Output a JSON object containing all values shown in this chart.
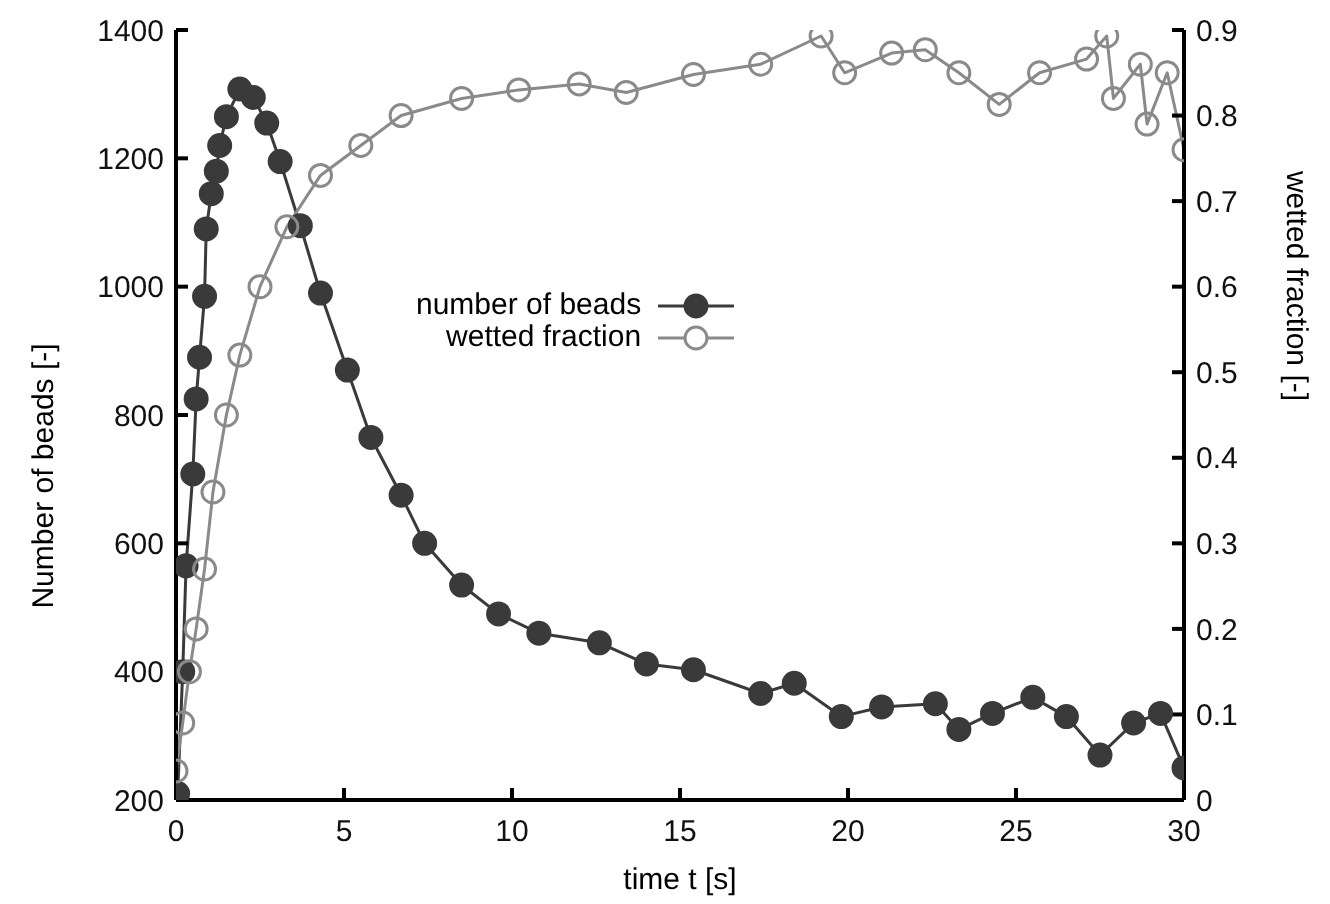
{
  "chart_data": {
    "type": "line",
    "xlabel": "time t [s]",
    "ylabel": "Number of beads [-]",
    "y2label": "wetted fraction [-]",
    "xlim": [
      0,
      30
    ],
    "xticks": [
      0,
      5,
      10,
      15,
      20,
      25,
      30
    ],
    "ylim": [
      200,
      1400
    ],
    "yticks": [
      200,
      400,
      600,
      800,
      1000,
      1200,
      1400
    ],
    "y2lim": [
      0,
      0.9
    ],
    "y2ticks": [
      0,
      0.1,
      0.2,
      0.3,
      0.4,
      0.5,
      0.6,
      0.7,
      0.8,
      0.9
    ],
    "grid": false,
    "legend": "left",
    "marker": "circle",
    "line_style": "solid",
    "series": [
      {
        "name": "number of beads",
        "color": "#3a3a3a",
        "x": [
          0.05,
          0.2,
          0.3,
          0.5,
          0.6,
          0.7,
          0.85,
          0.9,
          1.05,
          1.2,
          1.3,
          1.5,
          1.9,
          2.3,
          2.7,
          3.1,
          3.7,
          4.3,
          5.1,
          5.8,
          6.7,
          7.4,
          8.5,
          9.6,
          10.8,
          12.6,
          14,
          15.4,
          17.4,
          18.4,
          19.8,
          21,
          22.6,
          23.3,
          24.3,
          25.5,
          26.5,
          27.5,
          28.5,
          29.3,
          30
        ],
        "values": [
          210,
          400,
          565,
          708,
          825,
          890,
          985,
          1090,
          1145,
          1180,
          1220,
          1265,
          1308,
          1295,
          1255,
          1195,
          1095,
          990,
          870,
          765,
          675,
          600,
          535,
          490,
          460,
          445,
          412,
          403,
          366,
          382,
          330,
          345,
          350,
          310,
          335,
          360,
          330,
          270,
          320,
          335,
          250
        ]
      },
      {
        "name": "wetted fraction",
        "color": "#8a8a8a",
        "axis": "y2",
        "x": [
          0,
          0.2,
          0.4,
          0.6,
          0.85,
          1.1,
          1.5,
          1.9,
          2.5,
          3.3,
          4.3,
          5.5,
          6.7,
          8.5,
          10.2,
          12,
          13.4,
          15.4,
          17.4,
          19.2,
          19.9,
          21.3,
          22.3,
          23.3,
          24.5,
          25.7,
          27.1,
          27.7,
          27.9,
          28.7,
          28.9,
          29.5,
          30
        ],
        "values": [
          0.034,
          0.09,
          0.15,
          0.2,
          0.27,
          0.36,
          0.45,
          0.52,
          0.6,
          0.67,
          0.73,
          0.765,
          0.8,
          0.82,
          0.83,
          0.837,
          0.827,
          0.848,
          0.86,
          0.893,
          0.85,
          0.873,
          0.877,
          0.85,
          0.813,
          0.85,
          0.866,
          0.893,
          0.82,
          0.86,
          0.79,
          0.85,
          0.76
        ]
      }
    ]
  }
}
